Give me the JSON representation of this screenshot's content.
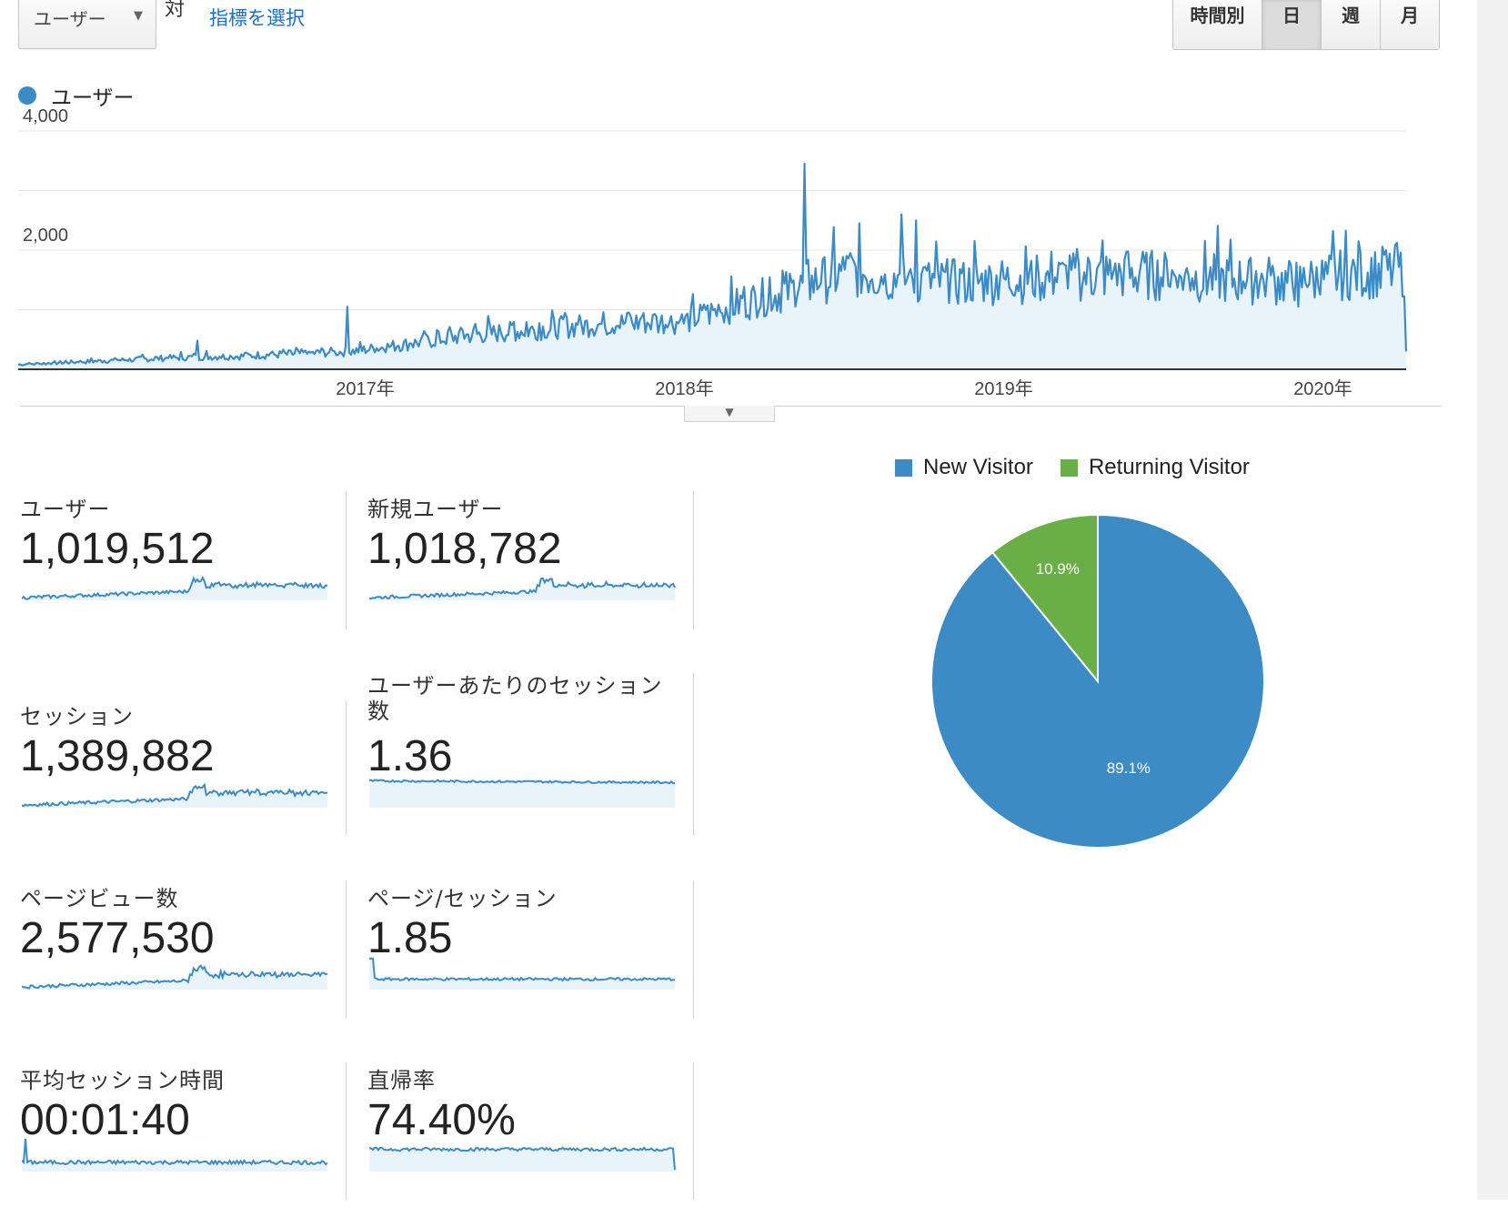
{
  "toolbar": {
    "metric_select": "ユーザー",
    "vs_label": "対",
    "select_metric_link": "指標を選択",
    "periods": [
      "時間別",
      "日",
      "週",
      "月"
    ],
    "active_period": "日"
  },
  "chart_data": [
    {
      "type": "area",
      "legend": [
        "ユーザー"
      ],
      "color": "#3d8bc4",
      "y_ticks": [
        "4,000",
        "2,000"
      ],
      "ylim": [
        0,
        4000
      ],
      "x_tick_labels": [
        "2017年",
        "2018年",
        "2019年",
        "2020年"
      ],
      "grid": true,
      "x": [
        "2016-02",
        "2016-04",
        "2016-06",
        "2016-08",
        "2016-10",
        "2016-12",
        "2017-02",
        "2017-04",
        "2017-06",
        "2017-08",
        "2017-10",
        "2017-12",
        "2018-02",
        "2018-04",
        "2018-06",
        "2018-08",
        "2018-10",
        "2018-12",
        "2019-02",
        "2019-04",
        "2019-06",
        "2019-08",
        "2019-10",
        "2019-12",
        "2020-02",
        "2020-03"
      ],
      "series": [
        {
          "values": [
            80,
            120,
            160,
            200,
            220,
            260,
            300,
            420,
            560,
            640,
            720,
            780,
            800,
            1100,
            1350,
            1650,
            1500,
            1450,
            1500,
            1550,
            1600,
            1550,
            1500,
            1450,
            1600,
            1650
          ]
        }
      ]
    },
    {
      "type": "pie",
      "legend": [
        "New Visitor",
        "Returning Visitor"
      ],
      "values": [
        89.1,
        10.9
      ],
      "labels": [
        "89.1%",
        "10.9%"
      ],
      "colors": [
        "#3d8bc4",
        "#6aaf45"
      ]
    }
  ],
  "tiles": [
    {
      "label": "ユーザー",
      "value": "1,019,512",
      "trend": "growth"
    },
    {
      "label": "新規ユーザー",
      "value": "1,018,782",
      "trend": "growth"
    },
    {
      "label": "セッション",
      "value": "1,389,882",
      "trend": "growth"
    },
    {
      "label": "ユーザーあたりのセッション数",
      "value": "1.36",
      "trend": "flat"
    },
    {
      "label": "ページビュー数",
      "value": "2,577,530",
      "trend": "growth"
    },
    {
      "label": "ページ/セッション",
      "value": "1.85",
      "trend": "flat-low"
    },
    {
      "label": "平均セッション時間",
      "value": "00:01:40",
      "trend": "spike-start"
    },
    {
      "label": "直帰率",
      "value": "74.40%",
      "trend": "flat-high"
    }
  ]
}
